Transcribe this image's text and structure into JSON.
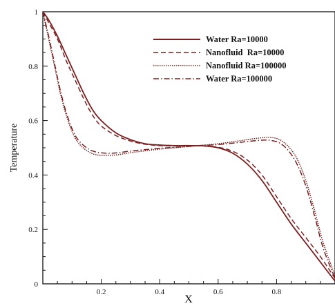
{
  "chart_data": {
    "type": "line",
    "title": "",
    "xlabel": "X",
    "ylabel": "Temperature",
    "xlim": [
      0,
      1
    ],
    "ylim": [
      0,
      1
    ],
    "xticks": [
      0.2,
      0.4,
      0.6,
      0.8
    ],
    "xtick_labels": [
      "0.2",
      "0.4",
      "0.6",
      "0.8"
    ],
    "yticks": [
      0,
      0.2,
      0.4,
      0.6,
      0.8,
      1
    ],
    "ytick_labels": [
      "0",
      "0.2",
      "0.4",
      "0.6",
      "0.8",
      "1"
    ],
    "grid": false,
    "legend_position": "top-right",
    "series_color": "#7a1f1f",
    "series": [
      {
        "name": "Water Ra=10000",
        "style": "solid",
        "x": [
          0,
          0.02,
          0.05,
          0.08,
          0.11,
          0.14,
          0.17,
          0.2,
          0.25,
          0.3,
          0.35,
          0.4,
          0.45,
          0.5,
          0.55,
          0.6,
          0.65,
          0.7,
          0.75,
          0.8,
          0.85,
          0.9,
          0.95,
          1.0
        ],
        "values": [
          1.0,
          0.97,
          0.91,
          0.84,
          0.77,
          0.7,
          0.64,
          0.6,
          0.555,
          0.53,
          0.515,
          0.51,
          0.508,
          0.508,
          0.507,
          0.5,
          0.48,
          0.44,
          0.38,
          0.3,
          0.22,
          0.15,
          0.08,
          0.01
        ]
      },
      {
        "name": "Nanofluid  Ra=10000",
        "style": "dashed",
        "x": [
          0,
          0.02,
          0.05,
          0.08,
          0.11,
          0.14,
          0.17,
          0.2,
          0.25,
          0.3,
          0.35,
          0.4,
          0.45,
          0.5,
          0.55,
          0.6,
          0.65,
          0.7,
          0.75,
          0.8,
          0.85,
          0.9,
          0.95,
          1.0
        ],
        "values": [
          1.0,
          0.96,
          0.9,
          0.82,
          0.75,
          0.68,
          0.62,
          0.58,
          0.545,
          0.525,
          0.513,
          0.508,
          0.507,
          0.507,
          0.507,
          0.502,
          0.487,
          0.455,
          0.4,
          0.32,
          0.24,
          0.17,
          0.1,
          0.02
        ]
      },
      {
        "name": "Nanofluid Ra=100000",
        "style": "dotted",
        "x": [
          0,
          0.02,
          0.04,
          0.06,
          0.08,
          0.1,
          0.12,
          0.15,
          0.18,
          0.22,
          0.26,
          0.3,
          0.4,
          0.5,
          0.6,
          0.65,
          0.7,
          0.75,
          0.78,
          0.81,
          0.84,
          0.87,
          0.9,
          0.93,
          0.96,
          1.0
        ],
        "values": [
          1.0,
          0.9,
          0.8,
          0.7,
          0.62,
          0.56,
          0.52,
          0.49,
          0.475,
          0.472,
          0.475,
          0.482,
          0.495,
          0.505,
          0.515,
          0.522,
          0.53,
          0.537,
          0.538,
          0.53,
          0.505,
          0.46,
          0.38,
          0.27,
          0.15,
          0.03
        ]
      },
      {
        "name": "Water Ra=100000",
        "style": "dashdot",
        "x": [
          0,
          0.02,
          0.04,
          0.06,
          0.08,
          0.1,
          0.12,
          0.15,
          0.18,
          0.22,
          0.26,
          0.3,
          0.4,
          0.5,
          0.6,
          0.65,
          0.7,
          0.75,
          0.78,
          0.81,
          0.84,
          0.87,
          0.9,
          0.93,
          0.96,
          1.0
        ],
        "values": [
          1.0,
          0.91,
          0.81,
          0.71,
          0.63,
          0.57,
          0.53,
          0.5,
          0.485,
          0.48,
          0.482,
          0.488,
          0.498,
          0.505,
          0.512,
          0.517,
          0.523,
          0.528,
          0.527,
          0.518,
          0.49,
          0.44,
          0.36,
          0.25,
          0.13,
          0.02
        ]
      }
    ]
  }
}
